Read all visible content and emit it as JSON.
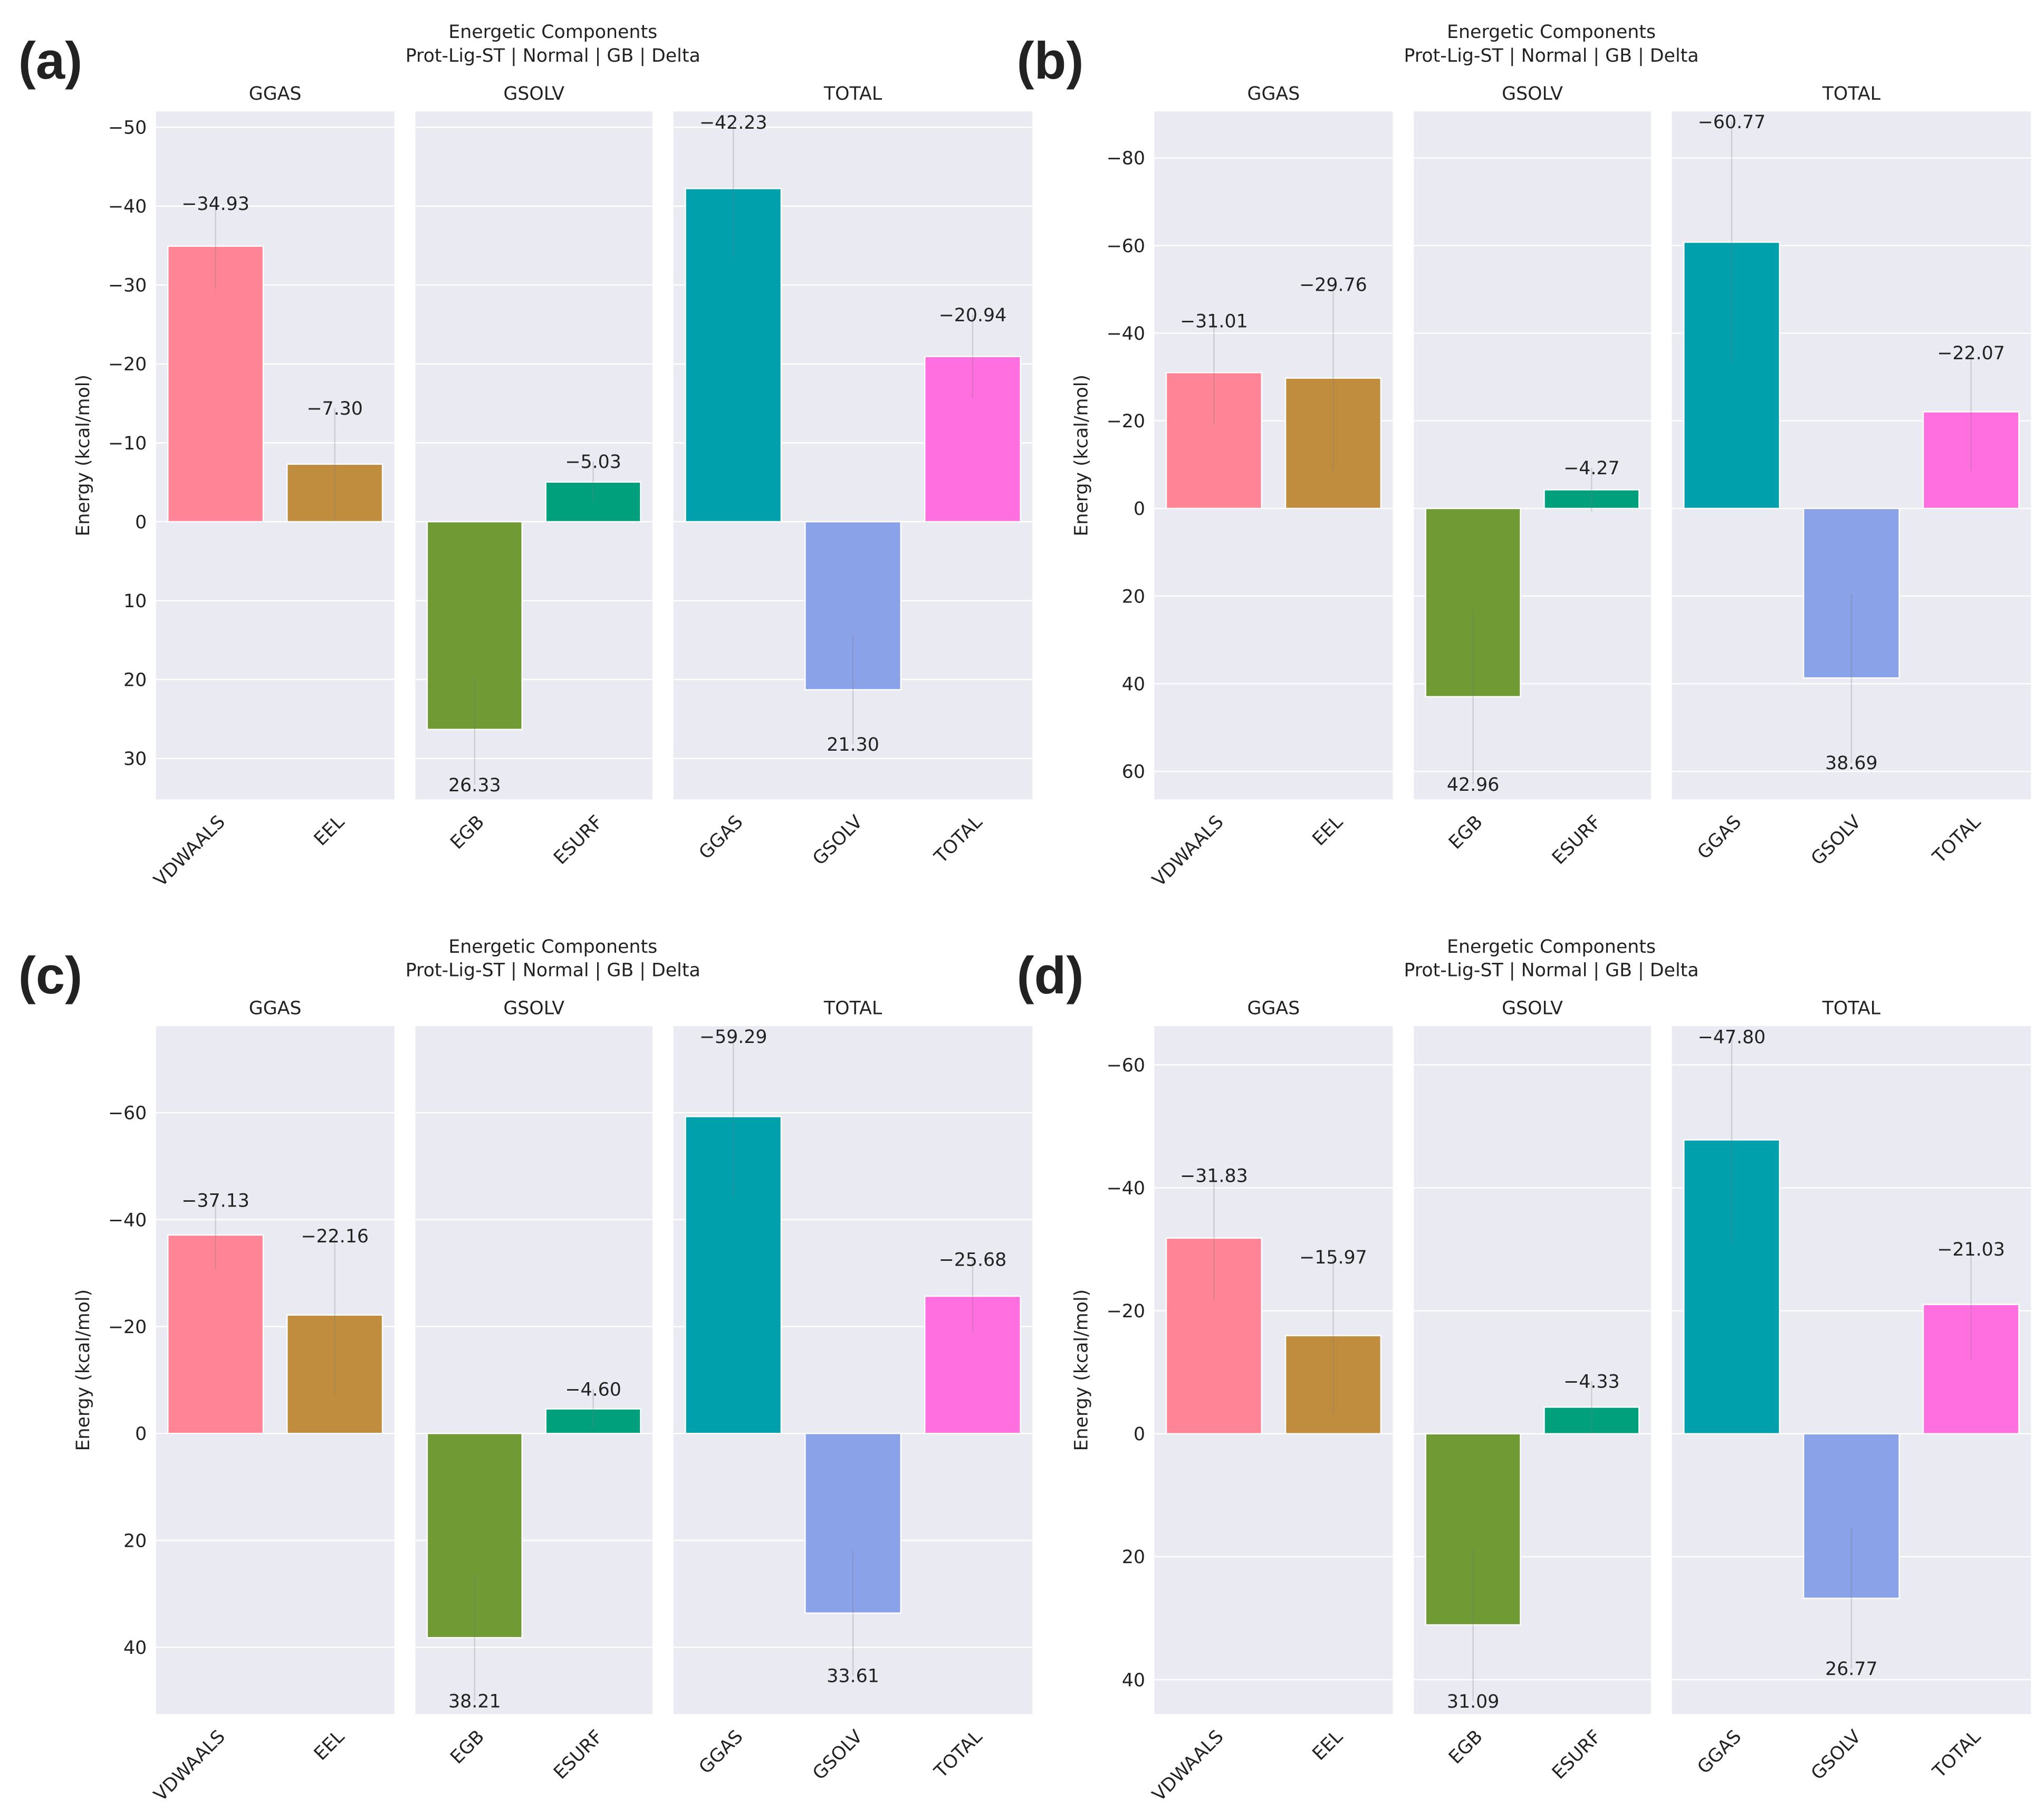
{
  "chart_data": [
    {
      "panel_label": "(a)",
      "type": "bar",
      "title": [
        "Energetic Components",
        "Prot-Lig-ST | Normal | GB | Delta"
      ],
      "ylabel": "Energy (kcal/mol)",
      "y_inverted": true,
      "ylim": [
        -52,
        35.2
      ],
      "yticks": [
        -50,
        -40,
        -30,
        -20,
        -10,
        0,
        10,
        20,
        30
      ],
      "facets": [
        {
          "name": "GGAS",
          "categories": [
            "VDWAALS",
            "EEL"
          ],
          "values": [
            -34.93,
            -7.3
          ],
          "labels": [
            "−34.93",
            "−7.30"
          ],
          "err": [
            5.4,
            7.1
          ]
        },
        {
          "name": "GSOLV",
          "categories": [
            "EGB",
            "ESURF"
          ],
          "values": [
            26.33,
            -5.03
          ],
          "labels": [
            "26.33",
            "−5.03"
          ],
          "err": [
            7.0,
            2.6
          ]
        },
        {
          "name": "TOTAL",
          "categories": [
            "GGAS",
            "GSOLV",
            "TOTAL"
          ],
          "values": [
            -42.23,
            21.3,
            -20.94
          ],
          "labels": [
            "−42.23",
            "21.30",
            "−20.94"
          ],
          "err": [
            8.4,
            6.9,
            5.3
          ]
        }
      ]
    },
    {
      "panel_label": "(b)",
      "type": "bar",
      "title": [
        "Energetic Components",
        "Prot-Lig-ST | Normal | GB | Delta"
      ],
      "ylabel": "Energy (kcal/mol)",
      "y_inverted": true,
      "ylim": [
        -90.6,
        66.4
      ],
      "yticks": [
        -80,
        -60,
        -40,
        -20,
        0,
        20,
        40,
        60
      ],
      "facets": [
        {
          "name": "GGAS",
          "categories": [
            "VDWAALS",
            "EEL"
          ],
          "values": [
            -31.01,
            -29.76
          ],
          "labels": [
            "−31.01",
            "−29.76"
          ],
          "err": [
            11.8,
            21.4
          ]
        },
        {
          "name": "GSOLV",
          "categories": [
            "EGB",
            "ESURF"
          ],
          "values": [
            42.96,
            -4.27
          ],
          "labels": [
            "42.96",
            "−4.27"
          ],
          "err": [
            20.0,
            5.0
          ]
        },
        {
          "name": "TOTAL",
          "categories": [
            "GGAS",
            "GSOLV",
            "TOTAL"
          ],
          "values": [
            -60.77,
            38.69,
            -22.07
          ],
          "labels": [
            "−60.77",
            "38.69",
            "−22.07"
          ],
          "err": [
            27.5,
            19.3,
            13.5
          ]
        }
      ]
    },
    {
      "panel_label": "(c)",
      "type": "bar",
      "title": [
        "Energetic Components",
        "Prot-Lig-ST | Normal | GB | Delta"
      ],
      "ylabel": "Energy (kcal/mol)",
      "y_inverted": true,
      "ylim": [
        -76.2,
        52.5
      ],
      "yticks": [
        -60,
        -40,
        -20,
        0,
        20,
        40
      ],
      "facets": [
        {
          "name": "GGAS",
          "categories": [
            "VDWAALS",
            "EEL"
          ],
          "values": [
            -37.13,
            -22.16
          ],
          "labels": [
            "−37.13",
            "−22.16"
          ],
          "err": [
            6.5,
            14.8
          ]
        },
        {
          "name": "GSOLV",
          "categories": [
            "EGB",
            "ESURF"
          ],
          "values": [
            38.21,
            -4.6
          ],
          "labels": [
            "38.21",
            "−4.60"
          ],
          "err": [
            11.8,
            3.7
          ]
        },
        {
          "name": "TOTAL",
          "categories": [
            "GGAS",
            "GSOLV",
            "TOTAL"
          ],
          "values": [
            -59.29,
            33.61,
            -25.68
          ],
          "labels": [
            "−59.29",
            "33.61",
            "−25.68"
          ],
          "err": [
            15.0,
            11.7,
            6.9
          ]
        }
      ]
    },
    {
      "panel_label": "(d)",
      "type": "bar",
      "title": [
        "Energetic Components",
        "Prot-Lig-ST | Normal | GB | Delta"
      ],
      "ylabel": "Energy (kcal/mol)",
      "y_inverted": true,
      "ylim": [
        -66.3,
        45.6
      ],
      "yticks": [
        -60,
        -40,
        -20,
        0,
        20,
        40
      ],
      "facets": [
        {
          "name": "GGAS",
          "categories": [
            "VDWAALS",
            "EEL"
          ],
          "values": [
            -31.83,
            -15.97
          ],
          "labels": [
            "−31.83",
            "−15.97"
          ],
          "err": [
            10.2,
            12.8
          ]
        },
        {
          "name": "GSOLV",
          "categories": [
            "EGB",
            "ESURF"
          ],
          "values": [
            31.09,
            -4.33
          ],
          "labels": [
            "31.09",
            "−4.33"
          ],
          "err": [
            12.4,
            4.2
          ]
        },
        {
          "name": "TOTAL",
          "categories": [
            "GGAS",
            "GSOLV",
            "TOTAL"
          ],
          "values": [
            -47.8,
            26.77,
            -21.03
          ],
          "labels": [
            "−47.80",
            "26.77",
            "−21.03"
          ],
          "err": [
            16.8,
            11.4,
            9.0
          ]
        }
      ]
    }
  ],
  "colors": {
    "VDWAALS": "#ff8596",
    "EEL": "#c08d3e",
    "EGB": "#6f9a34",
    "ESURF": "#00a07c",
    "GGAS": "#00a0ad",
    "GSOLV": "#8aa2e8",
    "TOTAL": "#ff6fdf",
    "plot_bg": "#e9eaf2",
    "grid": "#ffffff"
  }
}
